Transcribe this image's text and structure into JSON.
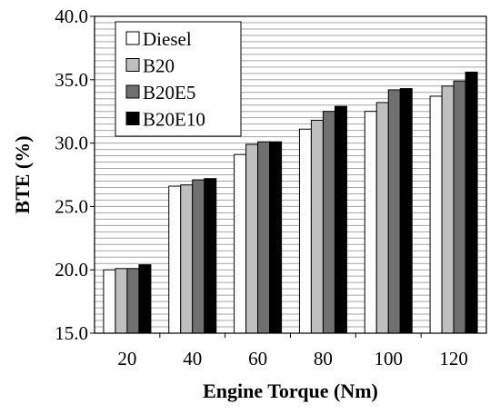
{
  "chart_data": {
    "type": "bar",
    "xlabel": "Engine Torque (Nm)",
    "ylabel": "BTE (%)",
    "ylim": [
      15.0,
      40.0
    ],
    "y_ticks": [
      "15.0",
      "20.0",
      "25.0",
      "30.0",
      "35.0",
      "40.0"
    ],
    "y_minor_step": 0.5,
    "grid": true,
    "legend_position": "top-left",
    "categories": [
      "20",
      "40",
      "60",
      "80",
      "100",
      "120"
    ],
    "series": [
      {
        "name": "Diesel",
        "color": "#ffffff",
        "values": [
          20.0,
          26.6,
          29.1,
          31.1,
          32.5,
          33.7
        ]
      },
      {
        "name": "B20",
        "color": "#bfbfbf",
        "values": [
          20.1,
          26.7,
          29.9,
          31.8,
          33.2,
          34.5
        ]
      },
      {
        "name": "B20E5",
        "color": "#707070",
        "values": [
          20.1,
          27.1,
          30.1,
          32.5,
          34.2,
          34.9
        ]
      },
      {
        "name": "B20E10",
        "color": "#000000",
        "values": [
          20.4,
          27.2,
          30.1,
          32.9,
          34.3,
          35.6
        ]
      }
    ]
  }
}
